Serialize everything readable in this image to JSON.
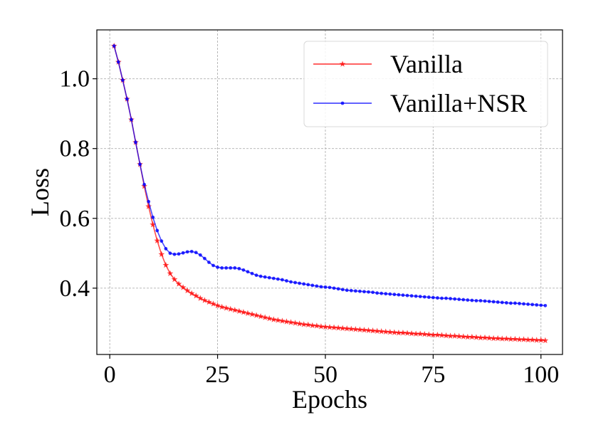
{
  "chart_data": {
    "type": "line",
    "xlabel": "Epochs",
    "ylabel": "Loss",
    "xlim": [
      -3,
      105
    ],
    "ylim": [
      0.21,
      1.14
    ],
    "xticks": [
      0,
      25,
      50,
      75,
      100
    ],
    "yticks": [
      0.4,
      0.6,
      0.8,
      1.0
    ],
    "xtick_labels": [
      "0",
      "25",
      "50",
      "75",
      "100"
    ],
    "ytick_labels": [
      "0.4",
      "0.6",
      "0.8",
      "1.0"
    ],
    "grid": true,
    "legend_position": "top-right",
    "series": [
      {
        "name": "Vanilla",
        "color": "#ff0000",
        "marker": "star",
        "x": [
          1,
          2,
          3,
          4,
          5,
          6,
          7,
          8,
          9,
          10,
          11,
          12,
          13,
          14,
          15,
          16,
          17,
          18,
          19,
          20,
          21,
          22,
          23,
          24,
          25,
          26,
          27,
          28,
          29,
          30,
          31,
          32,
          33,
          34,
          35,
          36,
          37,
          38,
          39,
          40,
          41,
          42,
          43,
          44,
          45,
          46,
          47,
          48,
          49,
          50,
          51,
          52,
          53,
          54,
          55,
          56,
          57,
          58,
          59,
          60,
          61,
          62,
          63,
          64,
          65,
          66,
          67,
          68,
          69,
          70,
          71,
          72,
          73,
          74,
          75,
          76,
          77,
          78,
          79,
          80,
          81,
          82,
          83,
          84,
          85,
          86,
          87,
          88,
          89,
          90,
          91,
          92,
          93,
          94,
          95,
          96,
          97,
          98,
          99,
          100,
          101
        ],
        "values": [
          1.094,
          1.048,
          0.996,
          0.942,
          0.883,
          0.818,
          0.755,
          0.692,
          0.634,
          0.582,
          0.536,
          0.497,
          0.466,
          0.442,
          0.425,
          0.412,
          0.402,
          0.393,
          0.385,
          0.378,
          0.371,
          0.365,
          0.36,
          0.355,
          0.35,
          0.346,
          0.343,
          0.34,
          0.337,
          0.334,
          0.331,
          0.328,
          0.325,
          0.322,
          0.319,
          0.316,
          0.313,
          0.31,
          0.308,
          0.306,
          0.304,
          0.302,
          0.3,
          0.298,
          0.296,
          0.295,
          0.293,
          0.292,
          0.29,
          0.289,
          0.288,
          0.287,
          0.286,
          0.285,
          0.284,
          0.283,
          0.282,
          0.281,
          0.28,
          0.279,
          0.278,
          0.277,
          0.276,
          0.275,
          0.274,
          0.273,
          0.272,
          0.272,
          0.271,
          0.27,
          0.269,
          0.269,
          0.268,
          0.267,
          0.266,
          0.266,
          0.265,
          0.264,
          0.263,
          0.263,
          0.262,
          0.261,
          0.26,
          0.26,
          0.259,
          0.258,
          0.258,
          0.257,
          0.256,
          0.256,
          0.255,
          0.255,
          0.254,
          0.254,
          0.253,
          0.253,
          0.252,
          0.252,
          0.251,
          0.251,
          0.25
        ]
      },
      {
        "name": "Vanilla+NSR",
        "color": "#0000ff",
        "marker": "dot",
        "x": [
          1,
          2,
          3,
          4,
          5,
          6,
          7,
          8,
          9,
          10,
          11,
          12,
          13,
          14,
          15,
          16,
          17,
          18,
          19,
          20,
          21,
          22,
          23,
          24,
          25,
          26,
          27,
          28,
          29,
          30,
          31,
          32,
          33,
          34,
          35,
          36,
          37,
          38,
          39,
          40,
          41,
          42,
          43,
          44,
          45,
          46,
          47,
          48,
          49,
          50,
          51,
          52,
          53,
          54,
          55,
          56,
          57,
          58,
          59,
          60,
          61,
          62,
          63,
          64,
          65,
          66,
          67,
          68,
          69,
          70,
          71,
          72,
          73,
          74,
          75,
          76,
          77,
          78,
          79,
          80,
          81,
          82,
          83,
          84,
          85,
          86,
          87,
          88,
          89,
          90,
          91,
          92,
          93,
          94,
          95,
          96,
          97,
          98,
          99,
          100,
          101
        ],
        "values": [
          1.094,
          1.048,
          0.996,
          0.942,
          0.883,
          0.818,
          0.755,
          0.697,
          0.648,
          0.603,
          0.565,
          0.535,
          0.513,
          0.5,
          0.497,
          0.498,
          0.501,
          0.504,
          0.505,
          0.502,
          0.495,
          0.485,
          0.474,
          0.465,
          0.46,
          0.458,
          0.458,
          0.458,
          0.458,
          0.456,
          0.452,
          0.447,
          0.442,
          0.437,
          0.434,
          0.432,
          0.43,
          0.428,
          0.426,
          0.424,
          0.421,
          0.418,
          0.416,
          0.414,
          0.412,
          0.41,
          0.408,
          0.406,
          0.404,
          0.403,
          0.402,
          0.4,
          0.398,
          0.396,
          0.394,
          0.393,
          0.392,
          0.391,
          0.39,
          0.389,
          0.388,
          0.386,
          0.385,
          0.384,
          0.383,
          0.382,
          0.381,
          0.38,
          0.379,
          0.378,
          0.377,
          0.376,
          0.375,
          0.374,
          0.373,
          0.372,
          0.371,
          0.371,
          0.37,
          0.369,
          0.368,
          0.367,
          0.366,
          0.365,
          0.364,
          0.364,
          0.363,
          0.362,
          0.361,
          0.36,
          0.359,
          0.358,
          0.357,
          0.357,
          0.356,
          0.355,
          0.354,
          0.353,
          0.352,
          0.351,
          0.35
        ]
      }
    ]
  }
}
